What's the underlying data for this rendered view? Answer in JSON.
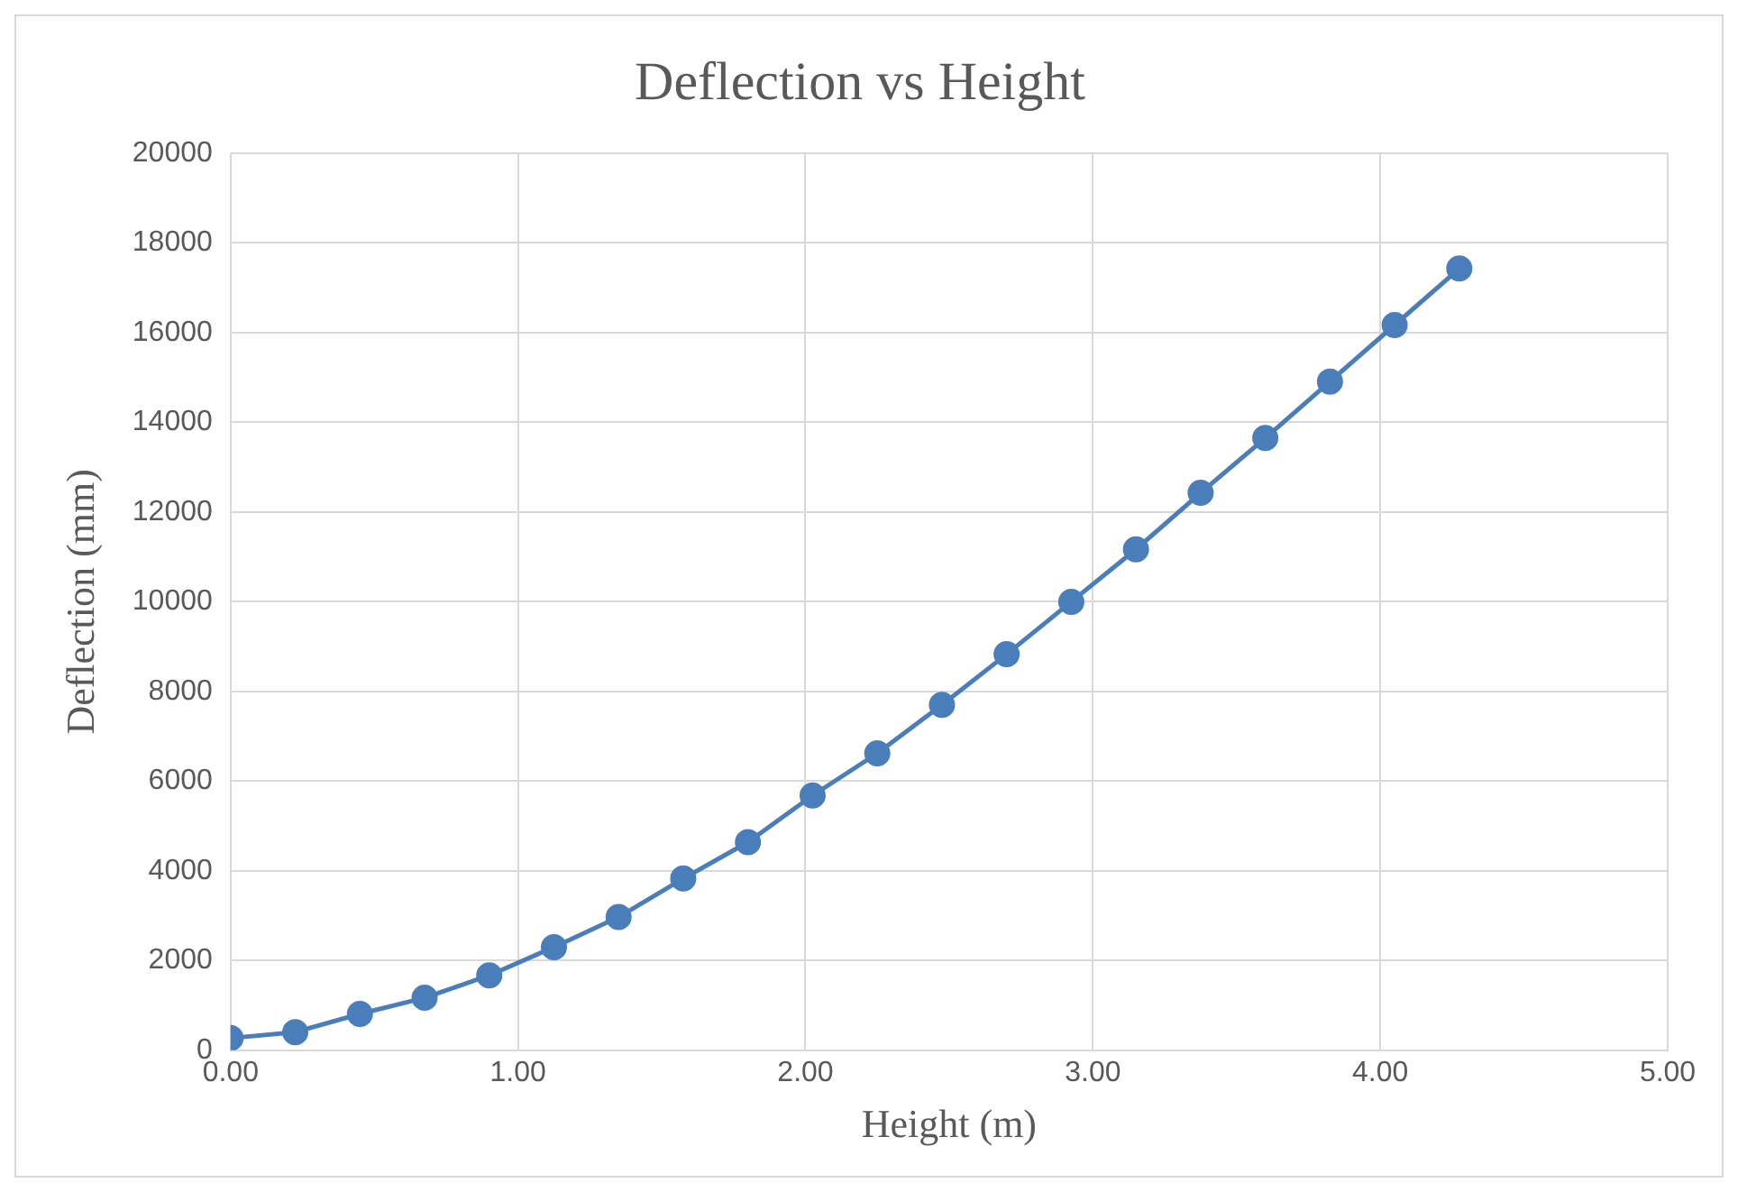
{
  "chart_data": {
    "type": "line",
    "title": "Deflection vs Height",
    "xlabel": "Height (m)",
    "ylabel": "Deflection (mm)",
    "x": [
      0,
      0.225,
      0.45,
      0.675,
      0.9,
      1.125,
      1.35,
      1.575,
      1.8,
      2.025,
      2.25,
      2.475,
      2.7,
      2.925,
      3.15,
      3.375,
      3.6,
      3.825,
      4.05,
      4.275
    ],
    "series": [
      {
        "color": "#4a7ebb",
        "values": [
          270,
          405,
          810,
          1170,
          1670,
          2300,
          2970,
          3830,
          4640,
          5680,
          6620,
          7700,
          8830,
          10000,
          11170,
          12430,
          13650,
          14910,
          16170,
          17430
        ]
      }
    ],
    "xlim": [
      0,
      5
    ],
    "xticks": [
      {
        "value": 0,
        "label": "0.00"
      },
      {
        "value": 1,
        "label": "1.00"
      },
      {
        "value": 2,
        "label": "2.00"
      },
      {
        "value": 3,
        "label": "3.00"
      },
      {
        "value": 4,
        "label": "4.00"
      },
      {
        "value": 5,
        "label": "5.00"
      }
    ],
    "ylim": [
      0,
      20000
    ],
    "yticks": [
      0,
      2000,
      4000,
      6000,
      8000,
      10000,
      12000,
      14000,
      16000,
      18000,
      20000
    ],
    "grid": true,
    "legend": false,
    "marker": "circle",
    "line_style": "solid"
  }
}
